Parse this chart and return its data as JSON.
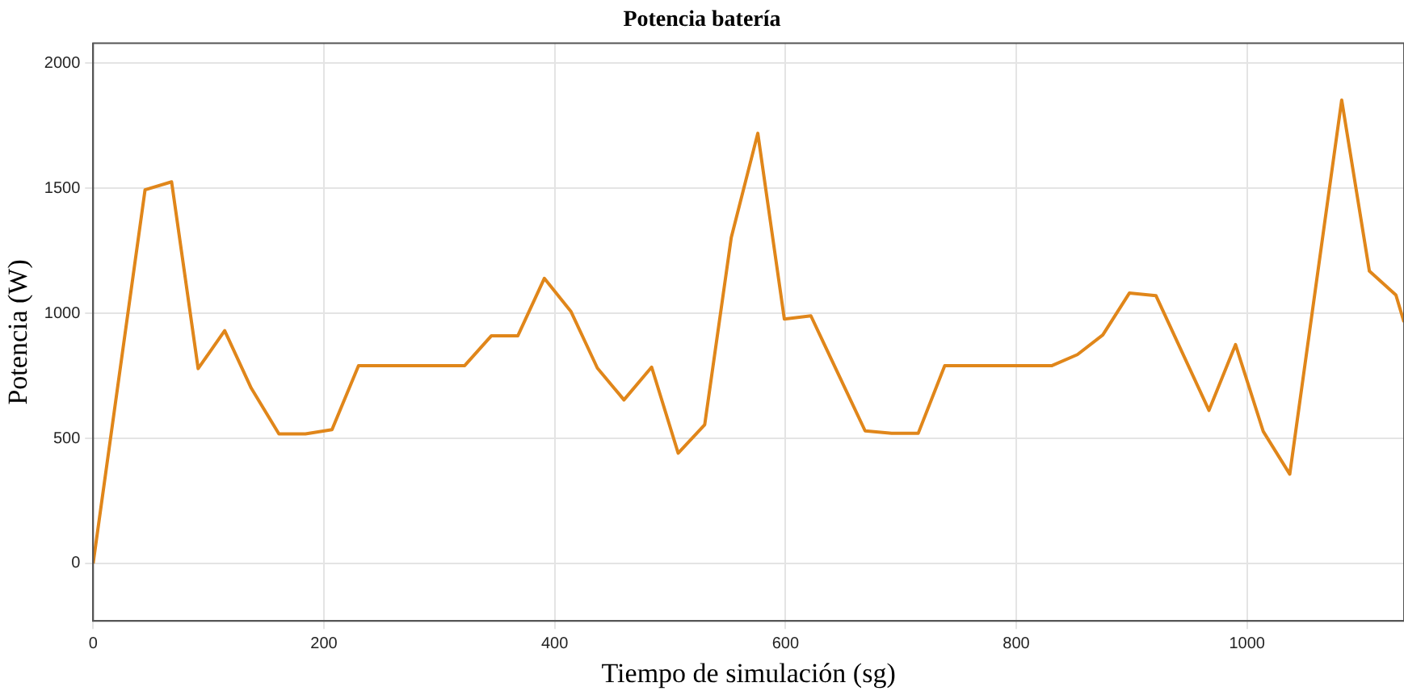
{
  "chart_data": {
    "type": "line",
    "title": "Potencia batería",
    "xlabel": "Tiempo de simulación (sg)",
    "ylabel": "Potencia (W)",
    "x": [
      0,
      45,
      68,
      91,
      114,
      137,
      161,
      184,
      207,
      230,
      322,
      345,
      368,
      391,
      414,
      437,
      460,
      484,
      507,
      530,
      553,
      576,
      599,
      622,
      669,
      692,
      715,
      738,
      831,
      853,
      875,
      898,
      921,
      967,
      990,
      1014,
      1037,
      1082,
      1106,
      1129,
      1136
    ],
    "series": [
      {
        "color": "#e0861a",
        "values": [
          0,
          1494,
          1526,
          779,
          931,
          701,
          518,
          518,
          535,
          791,
          791,
          910,
          910,
          1140,
          1008,
          781,
          654,
          785,
          441,
          555,
          1303,
          1720,
          977,
          990,
          530,
          520,
          520,
          791,
          791,
          835,
          914,
          1081,
          1071,
          612,
          875,
          528,
          357,
          1853,
          1169,
          1073,
          965
        ]
      }
    ],
    "xlim": [
      0,
      1136
    ],
    "ylim": [
      -230,
      2080
    ],
    "xticks": [
      0,
      200,
      400,
      600,
      800,
      1000
    ],
    "yticks": [
      0,
      500,
      1000,
      1500,
      2000
    ],
    "grid": true,
    "legend": false,
    "marker": "none",
    "line_style": "solid"
  }
}
